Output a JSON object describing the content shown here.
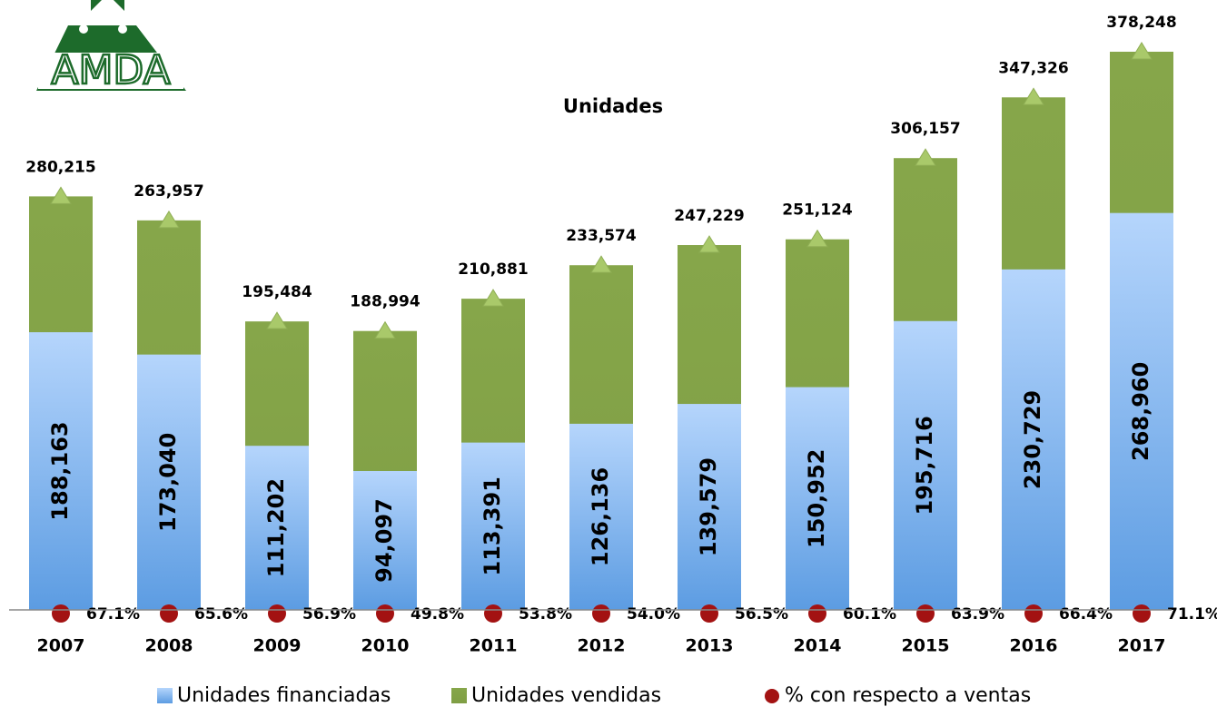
{
  "logo": "AMDA",
  "chart_data": {
    "type": "overlap-bar",
    "title": "Unidades",
    "categories": [
      "2007",
      "2008",
      "2009",
      "2010",
      "2011",
      "2012",
      "2013",
      "2014",
      "2015",
      "2016",
      "2017"
    ],
    "series": [
      {
        "name": "Unidades financiadas",
        "color": "#6ea8e8",
        "values": [
          188163,
          173040,
          111202,
          94097,
          113391,
          126136,
          139579,
          150952,
          195716,
          230729,
          268960
        ],
        "value_labels": [
          "188,163",
          "173,040",
          "111,202",
          "94,097",
          "113,391",
          "126,136",
          "139,579",
          "150,952",
          "195,716",
          "230,729",
          "268,960"
        ]
      },
      {
        "name": "Unidades vendidas",
        "color": "#8aa84e",
        "values": [
          280215,
          263957,
          195484,
          188994,
          210881,
          233574,
          247229,
          251124,
          306157,
          347326,
          378248
        ],
        "value_labels": [
          "280,215",
          "263,957",
          "195,484",
          "188,994",
          "210,881",
          "233,574",
          "247,229",
          "251,124",
          "306,157",
          "347,326",
          "378,248"
        ]
      },
      {
        "name": "% con respecto a ventas",
        "color": "#a31212",
        "values": [
          67.1,
          65.6,
          56.9,
          49.8,
          53.8,
          54.0,
          56.5,
          60.1,
          63.9,
          66.4,
          71.1
        ],
        "value_labels": [
          "67.1%",
          "65.6%",
          "56.9%",
          "49.8%",
          "53.8%",
          "54.0%",
          "56.5%",
          "60.1%",
          "63.9%",
          "66.4%",
          "71.1%"
        ]
      }
    ]
  }
}
